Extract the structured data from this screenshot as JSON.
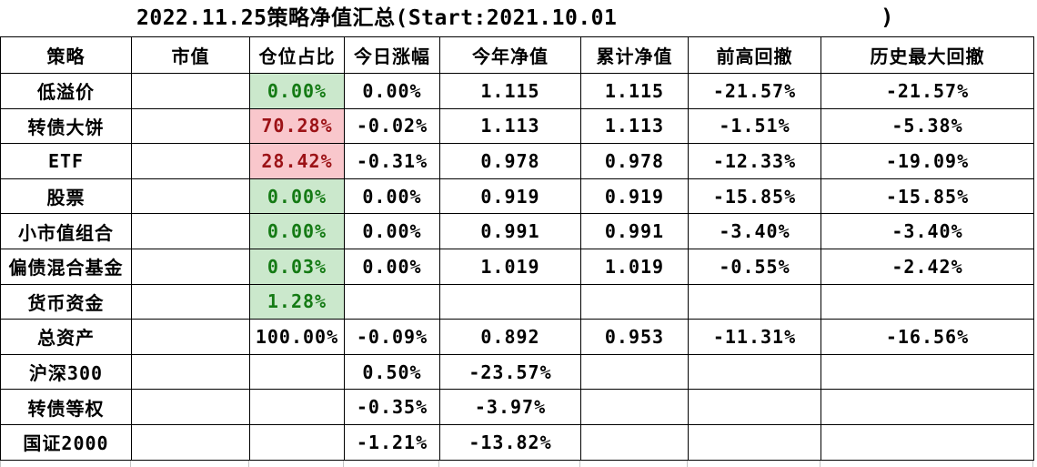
{
  "title": {
    "text": "2022.11.25策略净值汇总(Start:2021.10.01",
    "closing_paren": ")"
  },
  "table": {
    "columns": [
      "策略",
      "市值",
      "仓位占比",
      "今日涨幅",
      "今年净值",
      "累计净值",
      "前高回撤",
      "历史最大回撤"
    ],
    "column_keys": [
      "market-value",
      "position-pct",
      "today-change",
      "ytd-nav",
      "cumulative-nav",
      "drawdown-from-high",
      "historical-max-drawdown"
    ],
    "rows": [
      {
        "name": "低溢价",
        "position_style": "green",
        "cells": [
          "",
          "0.00%",
          "0.00%",
          "1.115",
          "1.115",
          "-21.57%",
          "-21.57%"
        ]
      },
      {
        "name": "转债大饼",
        "position_style": "red",
        "cells": [
          "",
          "70.28%",
          "-0.02%",
          "1.113",
          "1.113",
          "-1.51%",
          "-5.38%"
        ]
      },
      {
        "name": "ETF",
        "position_style": "red",
        "cells": [
          "",
          "28.42%",
          "-0.31%",
          "0.978",
          "0.978",
          "-12.33%",
          "-19.09%"
        ]
      },
      {
        "name": "股票",
        "position_style": "green",
        "cells": [
          "",
          "0.00%",
          "0.00%",
          "0.919",
          "0.919",
          "-15.85%",
          "-15.85%"
        ]
      },
      {
        "name": "小市值组合",
        "position_style": "green",
        "cells": [
          "",
          "0.00%",
          "0.00%",
          "0.991",
          "0.991",
          "-3.40%",
          "-3.40%"
        ]
      },
      {
        "name": "偏债混合基金",
        "position_style": "green",
        "cells": [
          "",
          "0.03%",
          "0.00%",
          "1.019",
          "1.019",
          "-0.55%",
          "-2.42%"
        ]
      },
      {
        "name": "货币资金",
        "position_style": "green",
        "cells": [
          "",
          "1.28%",
          "",
          "",
          "",
          "",
          ""
        ]
      },
      {
        "name": "总资产",
        "position_style": "plain",
        "cells": [
          "",
          "100.00%",
          "-0.09%",
          "0.892",
          "0.953",
          "-11.31%",
          "-16.56%"
        ]
      },
      {
        "name": "沪深300",
        "position_style": "none",
        "cells": [
          "",
          "",
          "0.50%",
          "-23.57%",
          "",
          "",
          ""
        ]
      },
      {
        "name": "转债等权",
        "position_style": "none",
        "cells": [
          "",
          "",
          "-0.35%",
          "-3.97%",
          "",
          "",
          ""
        ]
      },
      {
        "name": "国证2000",
        "position_style": "none",
        "cells": [
          "",
          "",
          "-1.21%",
          "-13.82%",
          "",
          "",
          ""
        ]
      }
    ]
  },
  "colors": {
    "position_good_fill": "#cbe8cc",
    "position_good_text": "#147a14",
    "position_alert_fill": "#f9c7cc",
    "position_alert_text": "#9c1216",
    "grid_border": "#000000"
  }
}
